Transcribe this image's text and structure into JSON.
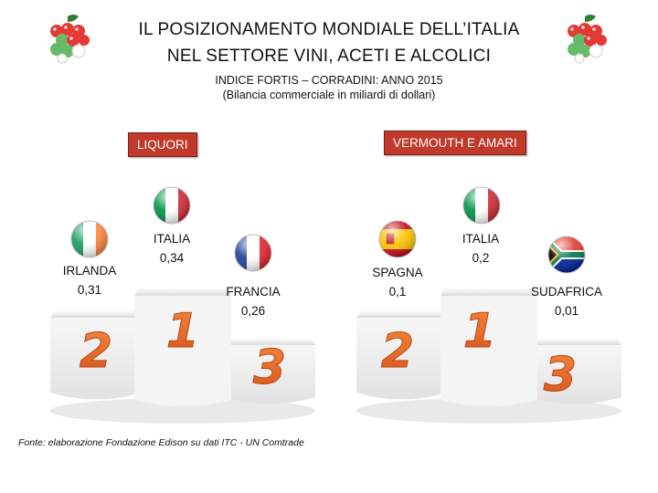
{
  "header": {
    "title_line1": "IL POSIZIONAMENTO MONDIALE DELL’ITALIA",
    "title_line2": "NEL SETTORE VINI, ACETI E ALCOLICI",
    "subtitle": "INDICE FORTIS – CORRADINI: ANNO 2015",
    "unit_note": "(Bilancia commerciale in miliardi di dollari)"
  },
  "logo_icon": "grapes-icon",
  "source": "Fonte: elaborazione Fondazione Edison su dati ITC - UN Comtrade",
  "rank_labels": [
    "1",
    "2",
    "3"
  ],
  "colors": {
    "tag_red": "#c0392b",
    "rank_orange": "#e8632a",
    "podium_fill": "#ededed"
  },
  "chart_data": [
    {
      "type": "table",
      "title": "LIQUORI",
      "ranking": [
        {
          "rank": 1,
          "country": "ITALIA",
          "value": 0.34,
          "value_label": "0,34",
          "flag": "italy-flag"
        },
        {
          "rank": 2,
          "country": "IRLANDA",
          "value": 0.31,
          "value_label": "0,31",
          "flag": "ireland-flag"
        },
        {
          "rank": 3,
          "country": "FRANCIA",
          "value": 0.26,
          "value_label": "0,26",
          "flag": "france-flag"
        }
      ]
    },
    {
      "type": "table",
      "title": "VERMOUTH E AMARI",
      "ranking": [
        {
          "rank": 1,
          "country": "ITALIA",
          "value": 0.2,
          "value_label": "0,2",
          "flag": "italy-flag"
        },
        {
          "rank": 2,
          "country": "SPAGNA",
          "value": 0.1,
          "value_label": "0,1",
          "flag": "spain-flag"
        },
        {
          "rank": 3,
          "country": "SUDAFRICA",
          "value": 0.01,
          "value_label": "0,01",
          "flag": "south-africa-flag"
        }
      ]
    }
  ]
}
